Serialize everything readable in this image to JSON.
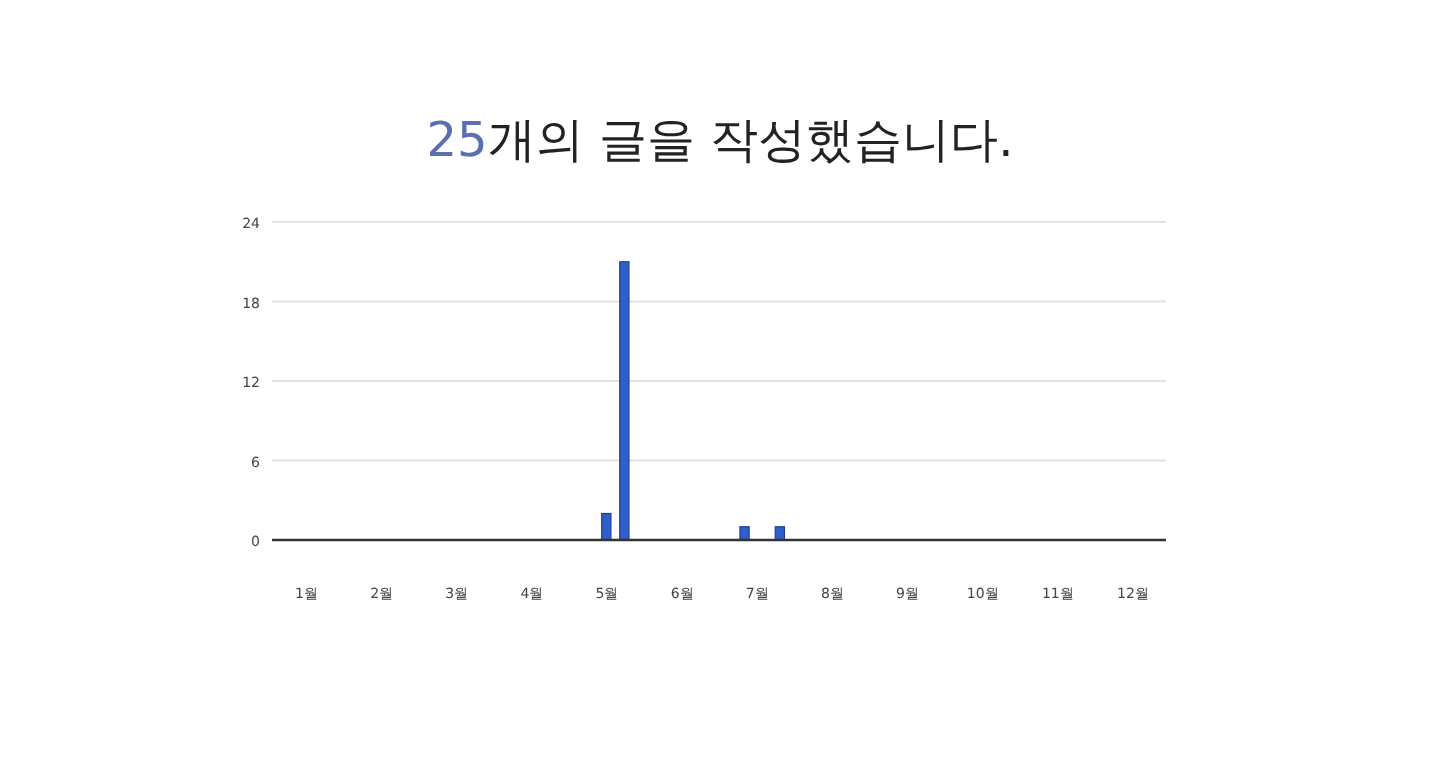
{
  "chart_data": {
    "type": "bar",
    "title": "25개의 글을 작성했습니다.",
    "x": [
      4.99,
      5.23,
      6.83,
      7.3
    ],
    "values": [
      2,
      21,
      1,
      1
    ],
    "color": "#2f5fc8",
    "xlim": [
      0.54,
      12.44
    ],
    "xticks": [
      {
        "value": 1,
        "label": "1월"
      },
      {
        "value": 2,
        "label": "2월"
      },
      {
        "value": 3,
        "label": "3월"
      },
      {
        "value": 4,
        "label": "4월"
      },
      {
        "value": 5,
        "label": "5월"
      },
      {
        "value": 6,
        "label": "6월"
      },
      {
        "value": 7,
        "label": "7월"
      },
      {
        "value": 8,
        "label": "8월"
      },
      {
        "value": 9,
        "label": "9월"
      },
      {
        "value": 10,
        "label": "10월"
      },
      {
        "value": 11,
        "label": "11월"
      },
      {
        "value": 12,
        "label": "12월"
      }
    ],
    "ylim": [
      0,
      24
    ],
    "yticks": [
      0,
      6,
      12,
      18,
      24
    ],
    "grid": "y"
  }
}
